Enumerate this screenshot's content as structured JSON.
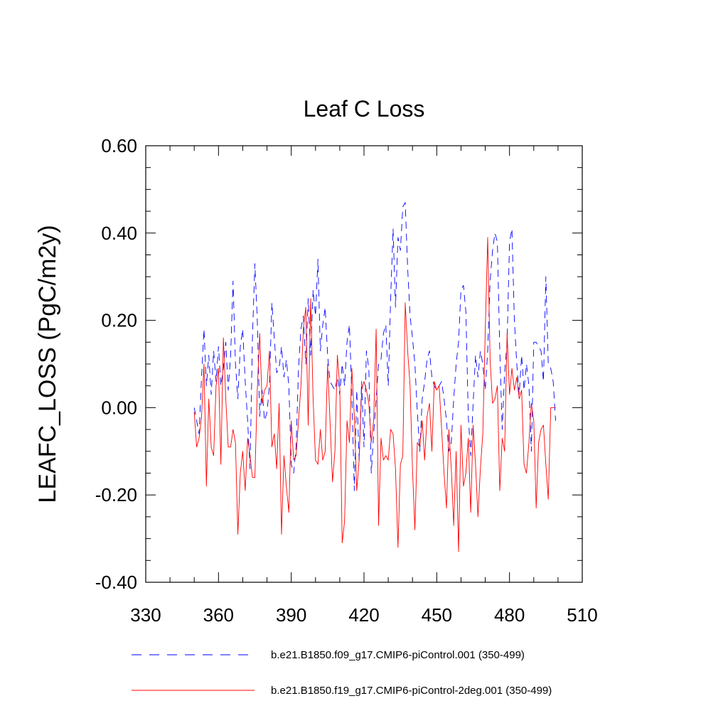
{
  "chart_data": {
    "type": "line",
    "title": "Leaf C Loss",
    "xlabel": "",
    "ylabel": "LEAFC_LOSS  (PgC/m2y)",
    "xlim": [
      330,
      510
    ],
    "ylim": [
      -0.4,
      0.6
    ],
    "x_ticks": [
      330,
      360,
      390,
      420,
      450,
      480,
      510
    ],
    "x_tick_labels": [
      "330",
      "360",
      "390",
      "420",
      "450",
      "480",
      "510"
    ],
    "y_ticks": [
      -0.4,
      -0.2,
      0.0,
      0.2,
      0.4,
      0.6
    ],
    "y_tick_labels": [
      "-0.40",
      "-0.20",
      "0.00",
      "0.20",
      "0.40",
      "0.60"
    ],
    "grid": false,
    "legend_position": "bottom",
    "x": [
      350,
      351,
      352,
      353,
      354,
      355,
      356,
      357,
      358,
      359,
      360,
      361,
      362,
      363,
      364,
      365,
      366,
      367,
      368,
      369,
      370,
      371,
      372,
      373,
      374,
      375,
      376,
      377,
      378,
      379,
      380,
      381,
      382,
      383,
      384,
      385,
      386,
      387,
      388,
      389,
      390,
      391,
      392,
      393,
      394,
      395,
      396,
      397,
      398,
      399,
      400,
      401,
      402,
      403,
      404,
      405,
      406,
      407,
      408,
      409,
      410,
      411,
      412,
      413,
      414,
      415,
      416,
      417,
      418,
      419,
      420,
      421,
      422,
      423,
      424,
      425,
      426,
      427,
      428,
      429,
      430,
      431,
      432,
      433,
      434,
      435,
      436,
      437,
      438,
      439,
      440,
      441,
      442,
      443,
      444,
      445,
      446,
      447,
      448,
      449,
      450,
      451,
      452,
      453,
      454,
      455,
      456,
      457,
      458,
      459,
      460,
      461,
      462,
      463,
      464,
      465,
      466,
      467,
      468,
      469,
      470,
      471,
      472,
      473,
      474,
      475,
      476,
      477,
      478,
      479,
      480,
      481,
      482,
      483,
      484,
      485,
      486,
      487,
      488,
      489,
      490,
      491,
      492,
      493,
      494,
      495,
      496,
      497,
      498,
      499
    ],
    "series": [
      {
        "name": "b.e21.B1850.f09_g17.CMIP6-piControl.001 (350-499)",
        "color": "#0000ff",
        "dash": "dashed",
        "values": [
          0.0,
          -0.03,
          -0.06,
          0.07,
          0.18,
          0.05,
          0.12,
          0.03,
          0.13,
          0.06,
          0.14,
          0.05,
          0.09,
          0.15,
          0.04,
          0.12,
          0.29,
          0.1,
          0.02,
          0.14,
          0.18,
          0.06,
          -0.03,
          -0.14,
          0.16,
          0.33,
          0.2,
          -0.02,
          0.04,
          -0.03,
          -0.01,
          0.05,
          0.24,
          0.16,
          0.08,
          0.09,
          0.14,
          0.07,
          0.11,
          0.05,
          -0.13,
          -0.15,
          -0.09,
          0.09,
          0.18,
          0.21,
          0.1,
          0.25,
          0.12,
          0.27,
          0.21,
          0.34,
          0.13,
          0.19,
          0.23,
          0.12,
          0.06,
          0.05,
          0.04,
          0.07,
          0.03,
          0.1,
          0.05,
          0.15,
          0.19,
          0.03,
          -0.19,
          0.04,
          -0.12,
          0.06,
          -0.09,
          0.13,
          0.09,
          -0.15,
          -0.06,
          0.02,
          0.1,
          0.11,
          0.17,
          0.19,
          0.05,
          0.25,
          0.41,
          0.23,
          0.39,
          0.36,
          0.46,
          0.47,
          0.32,
          0.21,
          0.16,
          0.1,
          -0.01,
          -0.1,
          0.02,
          0.06,
          0.11,
          0.13,
          0.07,
          0.05,
          0.04,
          0.05,
          0.06,
          0.02,
          -0.03,
          -0.1,
          -0.08,
          0.02,
          0.1,
          0.15,
          0.27,
          0.28,
          0.22,
          -0.02,
          -0.11,
          0.01,
          0.12,
          0.07,
          0.13,
          0.1,
          0.04,
          0.13,
          0.29,
          0.36,
          0.4,
          0.38,
          0.13,
          -0.05,
          0.08,
          0.15,
          0.38,
          0.41,
          0.2,
          0.1,
          0.03,
          0.12,
          0.04,
          0.1,
          0.05,
          -0.1,
          0.15,
          0.15,
          0.14,
          0.13,
          0.06,
          0.3,
          0.1,
          0.09,
          0.06,
          -0.03
        ]
      },
      {
        "name": "b.e21.B1850.f19_g17.CMIP6-piControl-2deg.001 (350-499)",
        "color": "#ff0000",
        "dash": "solid",
        "values": [
          -0.01,
          -0.09,
          -0.07,
          -0.02,
          0.1,
          -0.18,
          0.02,
          -0.09,
          -0.11,
          0.05,
          0.09,
          -0.13,
          0.16,
          0.02,
          -0.09,
          -0.09,
          -0.05,
          -0.08,
          -0.29,
          -0.15,
          -0.1,
          -0.19,
          -0.07,
          -0.11,
          -0.16,
          -0.16,
          0.04,
          0.17,
          0.01,
          0.04,
          0.05,
          0.13,
          -0.09,
          -0.06,
          -0.14,
          0.01,
          -0.29,
          -0.11,
          -0.18,
          -0.24,
          -0.03,
          -0.12,
          -0.11,
          -0.03,
          0.05,
          0.18,
          0.23,
          -0.04,
          0.25,
          0.02,
          -0.12,
          -0.13,
          -0.05,
          -0.12,
          -0.1,
          0.1,
          -0.03,
          -0.17,
          -0.1,
          0.12,
          0.05,
          -0.31,
          -0.26,
          -0.03,
          -0.08,
          0.09,
          -0.02,
          -0.19,
          -0.12,
          0.04,
          0.06,
          0.04,
          0.01,
          -0.08,
          -0.03,
          0.18,
          -0.27,
          -0.07,
          -0.12,
          -0.11,
          -0.12,
          -0.05,
          -0.06,
          -0.14,
          -0.32,
          -0.13,
          -0.11,
          0.24,
          0.13,
          0.05,
          -0.14,
          -0.28,
          -0.08,
          -0.09,
          -0.03,
          -0.12,
          -0.02,
          0.01,
          -0.1,
          0.06,
          0.04,
          0.05,
          -0.05,
          -0.15,
          -0.23,
          -0.05,
          -0.14,
          -0.27,
          -0.1,
          -0.33,
          -0.04,
          -0.18,
          -0.15,
          -0.07,
          -0.24,
          -0.04,
          -0.13,
          -0.25,
          -0.14,
          -0.06,
          0.18,
          0.39,
          0.11,
          0.01,
          0.02,
          0.05,
          -0.19,
          -0.07,
          -0.1,
          0.17,
          0.03,
          0.09,
          0.04,
          0.07,
          0.02,
          0.04,
          -0.13,
          -0.15,
          -0.08,
          0.01,
          -0.03,
          -0.23,
          -0.08,
          -0.05,
          -0.04,
          -0.13,
          -0.21,
          0.0,
          0.0,
          0.0
        ]
      }
    ]
  }
}
